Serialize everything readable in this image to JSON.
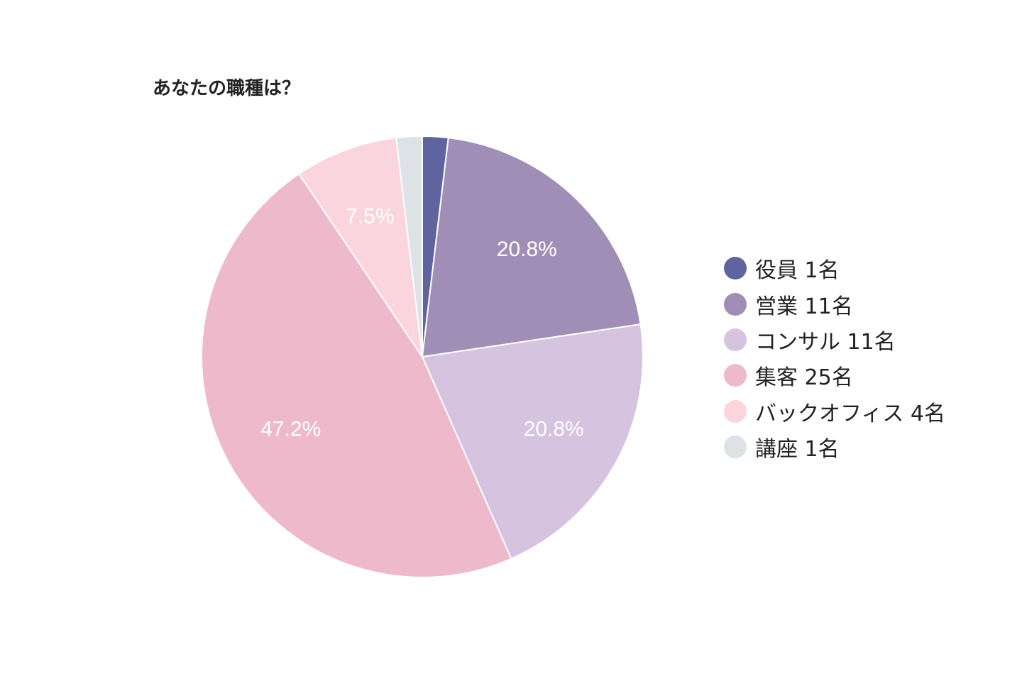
{
  "chart_data": {
    "type": "pie",
    "title": "あなたの職種は？",
    "legend_position": "right",
    "slices": [
      {
        "legend_label": "役員 1名",
        "value": 1,
        "color": "#5f63a0",
        "label": ""
      },
      {
        "legend_label": "営業 11名",
        "value": 11,
        "color": "#a18eb6",
        "label": "20.8%"
      },
      {
        "legend_label": "コンサル 11名",
        "value": 11,
        "color": "#d6c3e0",
        "label": "20.8%"
      },
      {
        "legend_label": "集客 25名",
        "value": 25,
        "color": "#eebacb",
        "label": "47.2%"
      },
      {
        "legend_label": "バックオフィス 4名",
        "value": 4,
        "color": "#fad5dd",
        "label": "7.5%"
      },
      {
        "legend_label": "講座 1名",
        "value": 1,
        "color": "#dde2e6",
        "label": ""
      }
    ]
  }
}
